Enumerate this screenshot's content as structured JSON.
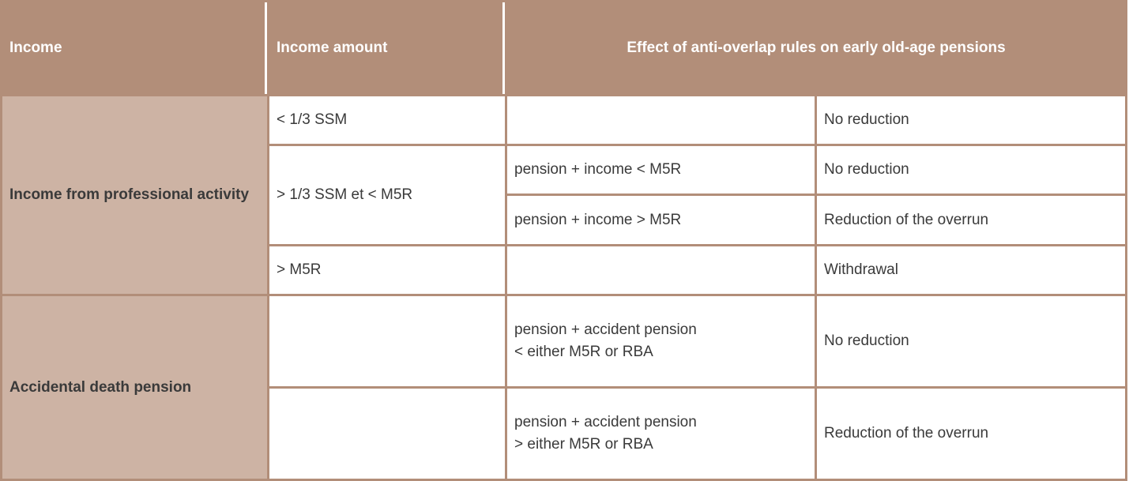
{
  "header": {
    "income": "Income",
    "income_amount": "Income amount",
    "effect": "Effect of anti-overlap rules on early old-age pensions"
  },
  "groups": [
    {
      "label": "Income from professional activity",
      "rows": [
        {
          "amount": "< 1/3 SSM",
          "condition": "",
          "effect": "No reduction"
        },
        {
          "amount": "> 1/3 SSM et < M5R",
          "condition": "pension + income < M5R",
          "effect": "No reduction"
        },
        {
          "amount": "",
          "condition": "pension + income > M5R",
          "effect": "Reduction of the overrun"
        },
        {
          "amount": "> M5R",
          "condition": "",
          "effect": "Withdrawal"
        }
      ]
    },
    {
      "label": "Accidental death pension",
      "rows": [
        {
          "amount": "",
          "condition_line1": "pension + accident pension",
          "condition_line2": "< either M5R or RBA",
          "effect": "No reduction"
        },
        {
          "amount": "",
          "condition_line1": "pension + accident pension",
          "condition_line2": "> either M5R or RBA",
          "effect": "Reduction of the overrun"
        }
      ]
    }
  ],
  "colors": {
    "header_bg": "#b28e79",
    "category_bg": "#cdb3a4",
    "cell_bg": "#ffffff",
    "border": "#b28e79"
  }
}
